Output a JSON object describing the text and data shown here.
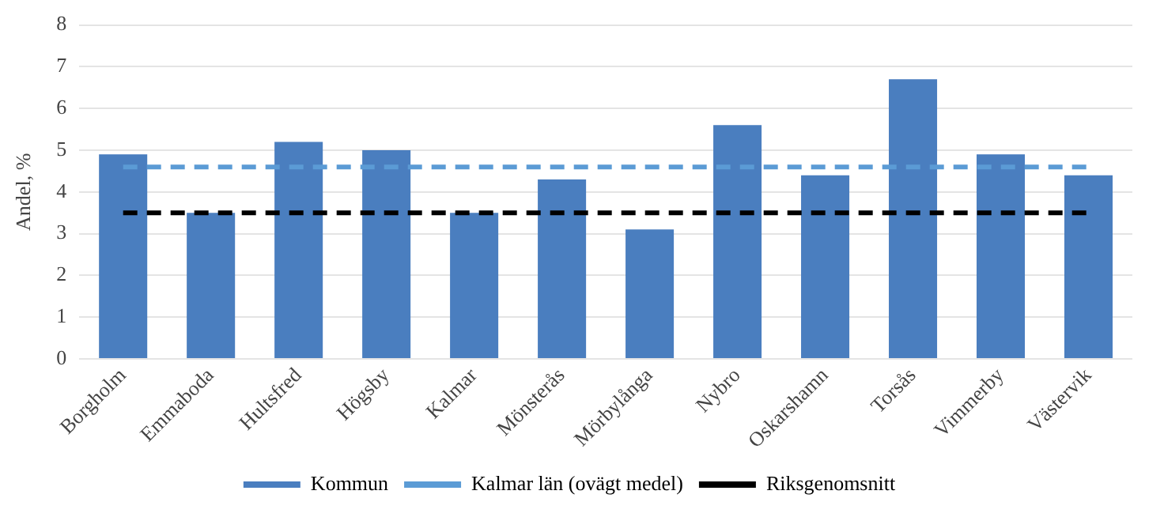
{
  "chart_data": {
    "type": "bar",
    "ylabel": "Andel, %",
    "categories": [
      "Borgholm",
      "Emmaboda",
      "Hultsfred",
      "Högsby",
      "Kalmar",
      "Mönsterås",
      "Mörbylånga",
      "Nybro",
      "Oskarshamn",
      "Torsås",
      "Vimmerby",
      "Västervik"
    ],
    "series": [
      {
        "name": "Kommun",
        "color": "#4a7ebf",
        "values": [
          4.9,
          3.5,
          5.2,
          5.0,
          3.5,
          4.3,
          3.1,
          5.6,
          4.4,
          6.7,
          4.9,
          4.4
        ]
      },
      {
        "name": "Kalmar län (ovägt medel)",
        "type": "line",
        "color": "#5b9bd5",
        "line_style": "dashed",
        "values": [
          4.6,
          4.6,
          4.6,
          4.6,
          4.6,
          4.6,
          4.6,
          4.6,
          4.6,
          4.6,
          4.6,
          4.6
        ]
      },
      {
        "name": "Riksgenomsnitt",
        "type": "line",
        "color": "#000000",
        "line_style": "dashed",
        "values": [
          3.5,
          3.5,
          3.5,
          3.5,
          3.5,
          3.5,
          3.5,
          3.5,
          3.5,
          3.5,
          3.5,
          3.5
        ]
      }
    ],
    "ylim": [
      0,
      8
    ],
    "yticks": [
      0,
      1,
      2,
      3,
      4,
      5,
      6,
      7,
      8
    ],
    "grid": "y",
    "legend": "bottom",
    "marker": "none"
  }
}
